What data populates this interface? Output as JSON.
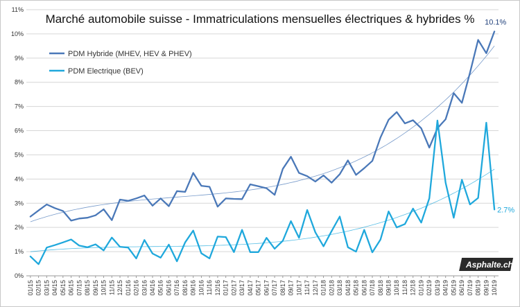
{
  "chart_data": {
    "type": "line",
    "title": "Marché automobile suisse - Immatriculations mensuelles électriques & hybrides %",
    "xlabel": "",
    "ylabel": "",
    "ylim": [
      0,
      11
    ],
    "y_ticks": [
      "0%",
      "1%",
      "2%",
      "3%",
      "4%",
      "5%",
      "6%",
      "7%",
      "8%",
      "9%",
      "10%",
      "11%"
    ],
    "grid": true,
    "legend_position": "top-left",
    "categories": [
      "01/15",
      "02/15",
      "03/15",
      "04/15",
      "05/15",
      "06/15",
      "07/15",
      "08/15",
      "09/15",
      "10/15",
      "11/15",
      "12/15",
      "01/16",
      "02/16",
      "03/16",
      "04/16",
      "05/16",
      "06/16",
      "07/16",
      "08/16",
      "09/16",
      "10/16",
      "11/16",
      "12/16",
      "01/17",
      "02/17",
      "03/17",
      "04/17",
      "05/17",
      "06/17",
      "07/17",
      "08/17",
      "09/17",
      "10/17",
      "11/17",
      "12/17",
      "01/18",
      "02/18",
      "03/18",
      "04/18",
      "05/18",
      "06/18",
      "07/18",
      "08/18",
      "09/18",
      "10/18",
      "11/18",
      "12/18",
      "01/19",
      "02/19",
      "03/19",
      "04/19",
      "05/19",
      "06/19",
      "07/19",
      "08/19",
      "09/19",
      "10/19"
    ],
    "series": [
      {
        "name": "PDM Hybride (MHEV, HEV & PHEV)",
        "color": "#4a78b8",
        "end_label": "10.1%",
        "values": [
          2.45,
          2.7,
          2.95,
          2.8,
          2.68,
          2.28,
          2.37,
          2.4,
          2.5,
          2.75,
          2.3,
          3.15,
          3.1,
          3.2,
          3.32,
          2.9,
          3.2,
          2.88,
          3.5,
          3.47,
          4.25,
          3.72,
          3.68,
          2.86,
          3.2,
          3.18,
          3.17,
          3.78,
          3.7,
          3.62,
          3.35,
          4.42,
          4.92,
          4.25,
          4.12,
          3.9,
          4.15,
          3.85,
          4.2,
          4.77,
          4.17,
          4.45,
          4.75,
          5.72,
          6.45,
          6.77,
          6.3,
          6.43,
          6.1,
          5.3,
          6.1,
          6.47,
          7.55,
          7.15,
          8.4,
          9.75,
          9.2,
          10.1
        ]
      },
      {
        "name": "PDM Electrique (BEV)",
        "color": "#1fa8dc",
        "end_label": "2.7%",
        "values": [
          0.8,
          0.48,
          1.17,
          1.27,
          1.38,
          1.5,
          1.25,
          1.18,
          1.3,
          1.05,
          1.58,
          1.2,
          1.17,
          0.72,
          1.48,
          0.92,
          0.75,
          1.29,
          0.6,
          1.38,
          1.87,
          0.93,
          0.72,
          1.62,
          1.6,
          0.98,
          1.9,
          0.98,
          0.98,
          1.57,
          1.12,
          1.45,
          2.26,
          1.57,
          2.72,
          1.8,
          1.22,
          1.85,
          2.45,
          1.18,
          1.0,
          1.9,
          0.97,
          1.5,
          2.66,
          2.0,
          2.14,
          2.78,
          2.2,
          3.2,
          6.42,
          3.85,
          2.4,
          3.97,
          2.95,
          3.22,
          6.33,
          2.74
        ]
      }
    ]
  },
  "watermark": "Asphalte.ch"
}
